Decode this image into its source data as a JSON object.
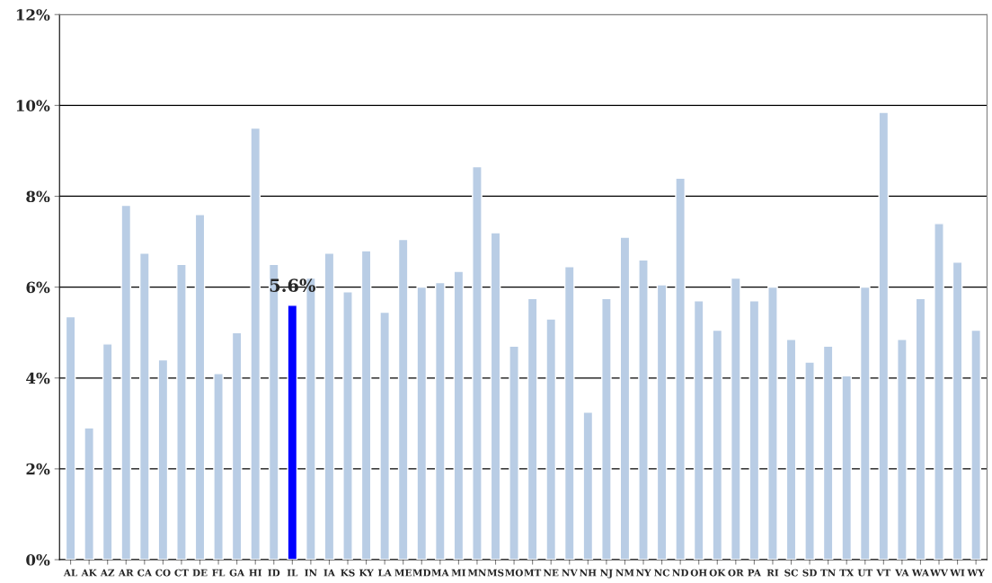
{
  "chart_data": {
    "type": "bar",
    "categories": [
      "AL",
      "AK",
      "AZ",
      "AR",
      "CA",
      "CO",
      "CT",
      "DE",
      "FL",
      "GA",
      "HI",
      "ID",
      "IL",
      "IN",
      "IA",
      "KS",
      "KY",
      "LA",
      "ME",
      "MD",
      "MA",
      "MI",
      "MN",
      "MS",
      "MO",
      "MT",
      "NE",
      "NV",
      "NH",
      "NJ",
      "NM",
      "NY",
      "NC",
      "ND",
      "OH",
      "OK",
      "OR",
      "PA",
      "RI",
      "SC",
      "SD",
      "TN",
      "TX",
      "UT",
      "VT",
      "VA",
      "WA",
      "WV",
      "WI",
      "WY"
    ],
    "values": [
      5.35,
      2.9,
      4.75,
      7.8,
      6.75,
      4.4,
      6.5,
      7.6,
      4.1,
      5.0,
      9.5,
      6.5,
      5.6,
      6.2,
      6.75,
      5.9,
      6.8,
      5.45,
      7.05,
      6.0,
      6.1,
      6.35,
      8.65,
      7.2,
      4.7,
      5.75,
      5.3,
      6.45,
      3.25,
      5.75,
      7.1,
      6.6,
      6.05,
      8.4,
      5.7,
      5.05,
      6.2,
      5.7,
      6.0,
      4.85,
      4.35,
      4.7,
      4.05,
      6.0,
      9.85,
      4.85,
      5.75,
      7.4,
      6.55,
      5.05
    ],
    "colors": [
      "#b9cde5",
      "#b9cde5",
      "#b9cde5",
      "#b9cde5",
      "#b9cde5",
      "#b9cde5",
      "#b9cde5",
      "#b9cde5",
      "#b9cde5",
      "#b9cde5",
      "#b9cde5",
      "#b9cde5",
      "#0000ff",
      "#b9cde5",
      "#b9cde5",
      "#b9cde5",
      "#b9cde5",
      "#b9cde5",
      "#b9cde5",
      "#b9cde5",
      "#b9cde5",
      "#b9cde5",
      "#b9cde5",
      "#b9cde5",
      "#b9cde5",
      "#b9cde5",
      "#b9cde5",
      "#b9cde5",
      "#b9cde5",
      "#b9cde5",
      "#b9cde5",
      "#b9cde5",
      "#b9cde5",
      "#b9cde5",
      "#b9cde5",
      "#b9cde5",
      "#b9cde5",
      "#b9cde5",
      "#b9cde5",
      "#b9cde5",
      "#b9cde5",
      "#b9cde5",
      "#b9cde5",
      "#b9cde5",
      "#b9cde5",
      "#b9cde5",
      "#b9cde5",
      "#b9cde5",
      "#b9cde5",
      "#b9cde5"
    ],
    "value_labels": [
      null,
      null,
      null,
      null,
      null,
      null,
      null,
      null,
      null,
      null,
      null,
      null,
      "5.6%",
      null,
      null,
      null,
      null,
      null,
      null,
      null,
      null,
      null,
      null,
      null,
      null,
      null,
      null,
      null,
      null,
      null,
      null,
      null,
      null,
      null,
      null,
      null,
      null,
      null,
      null,
      null,
      null,
      null,
      null,
      null,
      null,
      null,
      null,
      null,
      null,
      null
    ],
    "ylim": [
      0,
      12
    ],
    "yticks": [
      {
        "value": 0,
        "label": "0%"
      },
      {
        "value": 2,
        "label": "2%"
      },
      {
        "value": 4,
        "label": "4%"
      },
      {
        "value": 6,
        "label": "6%"
      },
      {
        "value": 8,
        "label": "8%"
      },
      {
        "value": 10,
        "label": "10%"
      },
      {
        "value": 12,
        "label": "12%"
      }
    ],
    "grid": "y",
    "legend": false
  }
}
